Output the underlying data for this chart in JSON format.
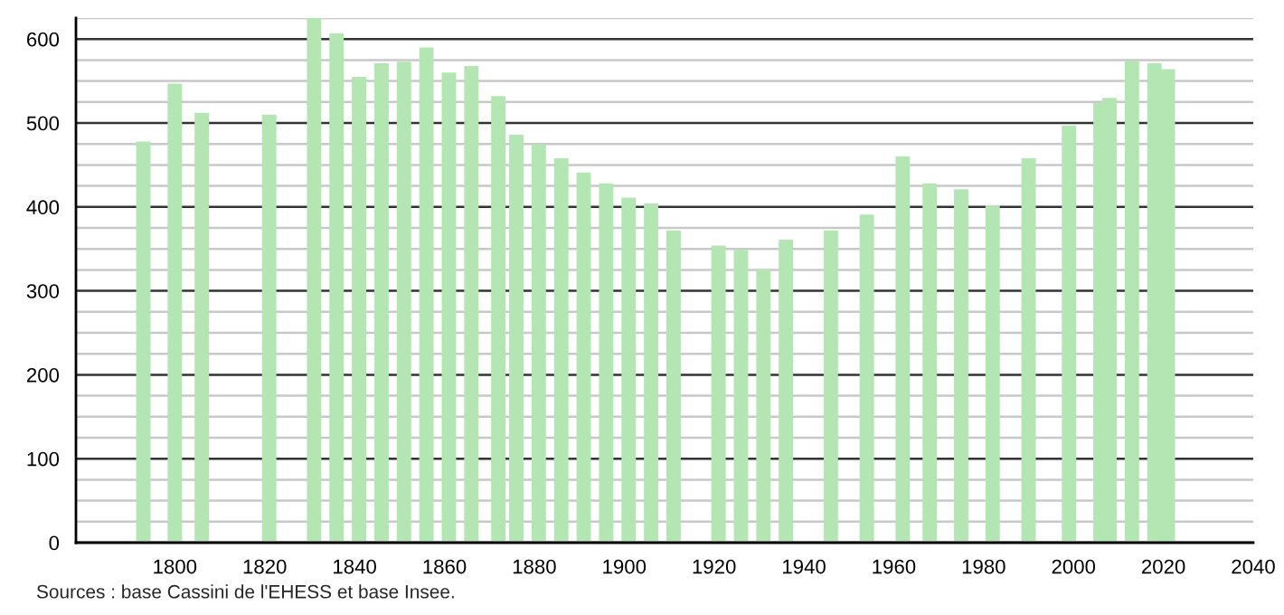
{
  "chart_data": {
    "type": "bar",
    "x": [
      1793,
      1800,
      1806,
      1821,
      1831,
      1836,
      1841,
      1846,
      1851,
      1856,
      1861,
      1866,
      1872,
      1876,
      1881,
      1886,
      1891,
      1896,
      1901,
      1906,
      1911,
      1921,
      1926,
      1931,
      1936,
      1946,
      1954,
      1962,
      1968,
      1975,
      1982,
      1990,
      1999,
      2006,
      2008,
      2013,
      2018,
      2021
    ],
    "values": [
      478,
      547,
      512,
      510,
      625,
      607,
      555,
      571,
      573,
      590,
      560,
      568,
      532,
      486,
      475,
      458,
      441,
      428,
      411,
      404,
      372,
      354,
      349,
      326,
      361,
      372,
      391,
      460,
      428,
      421,
      402,
      458,
      497,
      524,
      530,
      574,
      571,
      564
    ],
    "color": "#b3e6b3",
    "xlim": [
      1778,
      2040
    ],
    "xticks": [
      1800,
      1820,
      1840,
      1860,
      1880,
      1900,
      1920,
      1940,
      1960,
      1980,
      2000,
      2020,
      2040
    ],
    "ylim": [
      0,
      625
    ],
    "yticks": [
      0,
      {
        "value": 25,
        "label": null
      },
      {
        "value": 50,
        "label": null
      },
      {
        "value": 75,
        "label": null
      },
      100,
      {
        "value": 125,
        "label": null
      },
      {
        "value": 150,
        "label": null
      },
      {
        "value": 175,
        "label": null
      },
      200,
      {
        "value": 225,
        "label": null
      },
      {
        "value": 250,
        "label": null
      },
      {
        "value": 275,
        "label": null
      },
      300,
      {
        "value": 325,
        "label": null
      },
      {
        "value": 350,
        "label": null
      },
      {
        "value": 375,
        "label": null
      },
      400,
      {
        "value": 425,
        "label": null
      },
      {
        "value": 450,
        "label": null
      },
      {
        "value": 475,
        "label": null
      },
      500,
      {
        "value": 525,
        "label": null
      },
      {
        "value": 550,
        "label": null
      },
      {
        "value": 575,
        "label": null
      },
      600,
      {
        "value": 625,
        "label": null
      }
    ],
    "grid": "y",
    "annotations": [
      "Sources : base Cassini de l'EHESS et base Insee."
    ]
  }
}
